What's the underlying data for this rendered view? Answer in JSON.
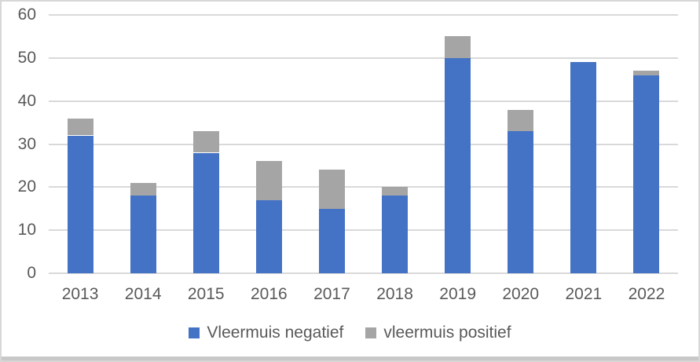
{
  "chart_data": {
    "type": "bar",
    "stacked": true,
    "title": "",
    "xlabel": "",
    "ylabel": "",
    "categories": [
      "2013",
      "2014",
      "2015",
      "2016",
      "2017",
      "2018",
      "2019",
      "2020",
      "2021",
      "2022"
    ],
    "series": [
      {
        "name": "Vleermuis negatief",
        "color": "#4472C4",
        "values": [
          32,
          18,
          28,
          17,
          15,
          18,
          50,
          33,
          49,
          46
        ]
      },
      {
        "name": "vleermuis positief",
        "color": "#A5A5A5",
        "values": [
          4,
          3,
          5,
          9,
          9,
          2,
          5,
          5,
          0,
          1
        ]
      }
    ],
    "totals": [
      36,
      21,
      33,
      26,
      24,
      20,
      55,
      38,
      49,
      47
    ],
    "ylim": [
      0,
      60
    ],
    "ytick_step": 10,
    "ytick_labels": [
      "0",
      "10",
      "20",
      "30",
      "40",
      "50",
      "60"
    ],
    "grid": true,
    "legend_position": "bottom",
    "colors": {
      "gridline": "#D9D9D9",
      "axis_label": "#595959",
      "frame_border": "#D7D7D7",
      "bottom_strip": "#C8C8C8",
      "background": "#FFFFFF"
    }
  }
}
